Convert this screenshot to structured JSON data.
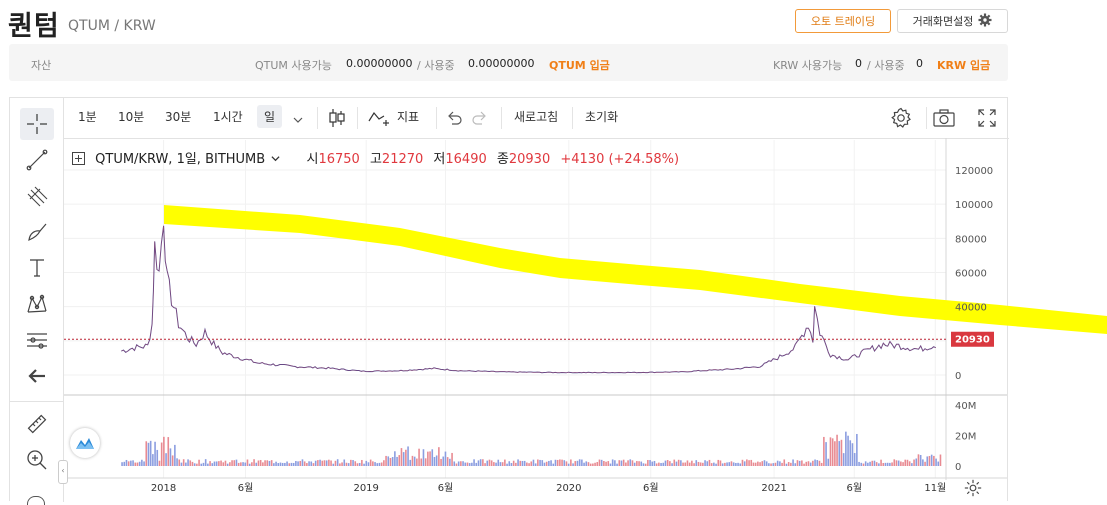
{
  "header": {
    "title": "퀀텀",
    "pair": "QTUM / KRW",
    "auto_trading_label": "오토 트레이딩",
    "screen_settings_label": "거래화면설정"
  },
  "assets": {
    "label": "자산",
    "qtum_available_label": "QTUM 사용가능",
    "qtum_available": "0.00000000",
    "in_use_sep": "/ 사용중",
    "qtum_in_use": "0.00000000",
    "qtum_deposit": "QTUM 입금",
    "krw_available_label": "KRW 사용가능",
    "krw_available": "0",
    "krw_in_use_sep": "/ 사용중",
    "krw_in_use": "0",
    "krw_deposit": "KRW 입금"
  },
  "toolbar": {
    "intervals": [
      "1분",
      "10분",
      "30분",
      "1시간",
      "일"
    ],
    "indicator_label": "지표",
    "refresh_label": "새로고침",
    "reset_label": "초기화"
  },
  "legend": {
    "symbol": "QTUM/KRW, 1일, BITHUMB",
    "open_label": "시",
    "open": "16750",
    "high_label": "고",
    "high": "21270",
    "low_label": "저",
    "low": "16490",
    "close_label": "종",
    "close": "20930",
    "change": "+4130 (+24.58%)"
  },
  "price_axis": {
    "ticks": [
      "120000",
      "100000",
      "80000",
      "60000",
      "40000",
      "20000",
      "0"
    ],
    "current_price": "20930"
  },
  "volume_axis": {
    "ticks": [
      "40M",
      "20M",
      "0"
    ]
  },
  "time_axis": {
    "labels": [
      "2018",
      "6월",
      "2019",
      "6월",
      "2020",
      "6월",
      "2021",
      "6월",
      "11월"
    ]
  },
  "colors": {
    "accent": "#f07f17",
    "up": "#e0383e",
    "down": "#3b63d6",
    "highlight": "#ffff00"
  },
  "icons": [
    "crosshair-icon",
    "trend-line-icon",
    "fib-icon",
    "brush-icon",
    "text-icon",
    "pattern-icon",
    "measure-icon",
    "back-arrow-icon",
    "ruler-icon",
    "zoom-in-icon",
    "gear-icon",
    "camera-icon",
    "fullscreen-icon",
    "undo-icon",
    "redo-icon",
    "candle-type-icon",
    "indicator-icon",
    "chart-logo-icon"
  ]
}
